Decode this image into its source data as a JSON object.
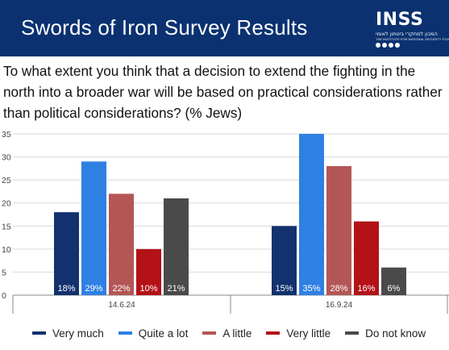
{
  "header": {
    "title": "Swords of Iron Survey Results",
    "logo": {
      "brand": "INSS",
      "line1": "המכון למחקרי ביטחון לאומי",
      "line2": "THE INSTITUTE FOR NATIONAL SECURITY STUDIES"
    },
    "background_color": "#0b3170"
  },
  "question": "To what extent you think that a decision to extend the fighting in the north into a broader war will be based on practical considerations rather than political considerations? (% Jews)",
  "chart_data": {
    "type": "bar",
    "categories": [
      "14.6.24",
      "16.9.24"
    ],
    "series": [
      {
        "name": "Very much",
        "color": "#12316e",
        "values": [
          18,
          15
        ],
        "labels": [
          "18%",
          "15%"
        ]
      },
      {
        "name": "Quite a lot",
        "color": "#2f80e3",
        "values": [
          29,
          35
        ],
        "labels": [
          "29%",
          "35%"
        ]
      },
      {
        "name": "A little",
        "color": "#b45656",
        "color_hint": "muted red",
        "values": [
          22,
          28
        ],
        "labels": [
          "22%",
          "28%"
        ]
      },
      {
        "name": "Very little",
        "color": "#b31217",
        "values": [
          10,
          16
        ],
        "labels": [
          "10%",
          "16%"
        ]
      },
      {
        "name": "Do not know",
        "color": "#4a4a4a",
        "values": [
          21,
          6
        ],
        "labels": [
          "21%",
          "6%"
        ]
      }
    ],
    "yticks": [
      "0",
      "5",
      "10",
      "15",
      "20",
      "25",
      "30",
      "35"
    ],
    "ylim": [
      0,
      35
    ],
    "grid": true,
    "legend": "bottom"
  }
}
